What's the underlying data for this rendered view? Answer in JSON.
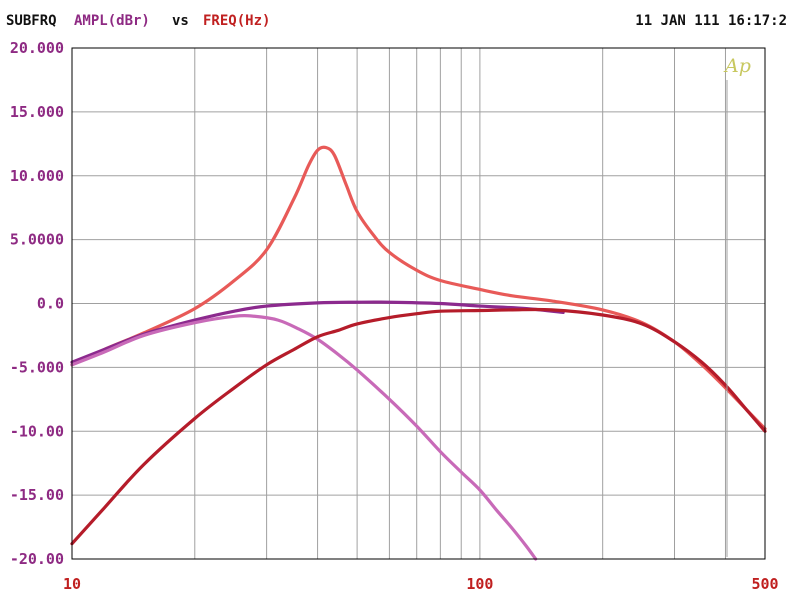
{
  "header": {
    "left_label": "SUBFRQ",
    "y_quantity": "AMPL(dBr)",
    "vs": "vs",
    "x_quantity": "FREQ(Hz)",
    "timestamp": "11 JAN 111 16:17:2"
  },
  "logo_text": "Ap",
  "colors": {
    "background": "#ffffff",
    "grid": "#a0a0a0",
    "frame": "#000000",
    "tick_label": "#8e2a83",
    "x_tick_label": "#c02020",
    "header_black": "#111111",
    "header_purple": "#8e2a83",
    "header_red": "#c02020",
    "logo": "#c8c860"
  },
  "chart_data": {
    "type": "line",
    "title": "",
    "xlabel": "FREQ(Hz)",
    "ylabel": "AMPL(dBr)",
    "x_scale": "log",
    "xlim": [
      10,
      500
    ],
    "ylim": [
      -20,
      20
    ],
    "x_tick_labels": [
      {
        "value": 10,
        "label": "10"
      },
      {
        "value": 100,
        "label": "100"
      },
      {
        "value": 500,
        "label": "500"
      }
    ],
    "x_gridlines": [
      20,
      30,
      40,
      50,
      60,
      70,
      80,
      90,
      100,
      200,
      300,
      400
    ],
    "y_tick_labels": [
      {
        "value": 20,
        "label": "20.000"
      },
      {
        "value": 15,
        "label": "15.000"
      },
      {
        "value": 10,
        "label": "10.000"
      },
      {
        "value": 5,
        "label": "5.0000"
      },
      {
        "value": 0,
        "label": "0.0"
      },
      {
        "value": -5,
        "label": "-5.000"
      },
      {
        "value": -10,
        "label": "-10.00"
      },
      {
        "value": -15,
        "label": "-15.00"
      },
      {
        "value": -20,
        "label": "-20.00"
      }
    ],
    "grid": true,
    "series": [
      {
        "color": "#e85a58",
        "points": [
          [
            10,
            -4.8
          ],
          [
            12,
            -3.6
          ],
          [
            15,
            -2.3
          ],
          [
            20,
            -0.4
          ],
          [
            25,
            1.8
          ],
          [
            30,
            4.2
          ],
          [
            35,
            8.2
          ],
          [
            38,
            10.8
          ],
          [
            40,
            12.0
          ],
          [
            42,
            12.2
          ],
          [
            44,
            11.6
          ],
          [
            47,
            9.3
          ],
          [
            50,
            7.2
          ],
          [
            55,
            5.3
          ],
          [
            60,
            4.0
          ],
          [
            70,
            2.6
          ],
          [
            80,
            1.8
          ],
          [
            100,
            1.1
          ],
          [
            120,
            0.6
          ],
          [
            150,
            0.2
          ],
          [
            200,
            -0.5
          ],
          [
            250,
            -1.5
          ],
          [
            300,
            -3.0
          ],
          [
            350,
            -4.8
          ],
          [
            400,
            -6.6
          ],
          [
            450,
            -8.3
          ],
          [
            500,
            -9.8
          ]
        ]
      },
      {
        "color": "#8c2a8e",
        "points": [
          [
            10,
            -4.6
          ],
          [
            12,
            -3.6
          ],
          [
            15,
            -2.4
          ],
          [
            20,
            -1.3
          ],
          [
            25,
            -0.6
          ],
          [
            30,
            -0.2
          ],
          [
            40,
            0.05
          ],
          [
            50,
            0.1
          ],
          [
            60,
            0.1
          ],
          [
            80,
            0.0
          ],
          [
            100,
            -0.2
          ],
          [
            130,
            -0.4
          ],
          [
            160,
            -0.7
          ]
        ]
      },
      {
        "color": "#c86ab8",
        "points": [
          [
            10,
            -4.8
          ],
          [
            12,
            -3.8
          ],
          [
            15,
            -2.5
          ],
          [
            20,
            -1.5
          ],
          [
            25,
            -1.0
          ],
          [
            28,
            -1.0
          ],
          [
            32,
            -1.3
          ],
          [
            36,
            -2.0
          ],
          [
            40,
            -2.8
          ],
          [
            45,
            -4.0
          ],
          [
            50,
            -5.2
          ],
          [
            60,
            -7.5
          ],
          [
            70,
            -9.6
          ],
          [
            80,
            -11.6
          ],
          [
            90,
            -13.2
          ],
          [
            100,
            -14.6
          ],
          [
            110,
            -16.2
          ],
          [
            120,
            -17.6
          ],
          [
            130,
            -19.0
          ],
          [
            137,
            -20.0
          ]
        ]
      },
      {
        "color": "#b51c2a",
        "points": [
          [
            10,
            -18.8
          ],
          [
            12,
            -16.0
          ],
          [
            15,
            -12.6
          ],
          [
            20,
            -9.0
          ],
          [
            25,
            -6.6
          ],
          [
            30,
            -4.8
          ],
          [
            35,
            -3.6
          ],
          [
            40,
            -2.6
          ],
          [
            45,
            -2.1
          ],
          [
            50,
            -1.6
          ],
          [
            60,
            -1.1
          ],
          [
            70,
            -0.8
          ],
          [
            80,
            -0.6
          ],
          [
            100,
            -0.55
          ],
          [
            120,
            -0.5
          ],
          [
            150,
            -0.5
          ],
          [
            200,
            -0.9
          ],
          [
            250,
            -1.6
          ],
          [
            300,
            -3.0
          ],
          [
            350,
            -4.6
          ],
          [
            400,
            -6.4
          ],
          [
            450,
            -8.3
          ],
          [
            500,
            -10.0
          ]
        ]
      }
    ]
  }
}
